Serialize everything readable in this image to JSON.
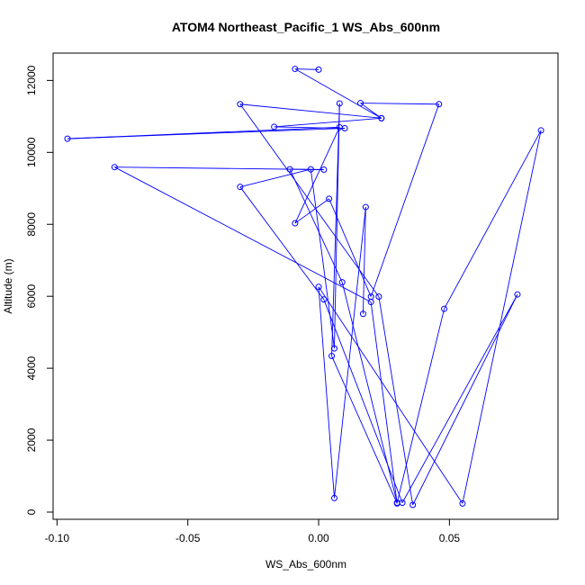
{
  "chart_data": {
    "type": "line",
    "title": "ATOM4 Northeast_Pacific_1 WS_Abs_600nm",
    "xlabel": "WS_Abs_600nm",
    "ylabel": "Altitude (m)",
    "xlim": [
      -0.1015,
      0.0915
    ],
    "ylim": [
      -200,
      12760
    ],
    "x_ticks": [
      {
        "value": -0.1,
        "label": "-0.10"
      },
      {
        "value": -0.05,
        "label": "-0.05"
      },
      {
        "value": 0.0,
        "label": "0.00"
      },
      {
        "value": 0.05,
        "label": "0.05"
      }
    ],
    "y_ticks": [
      {
        "value": 0,
        "label": "0"
      },
      {
        "value": 2000,
        "label": "2000"
      },
      {
        "value": 4000,
        "label": "4000"
      },
      {
        "value": 6000,
        "label": "6000"
      },
      {
        "value": 8000,
        "label": "8000"
      },
      {
        "value": 10000,
        "label": "10000"
      },
      {
        "value": 12000,
        "label": "12000"
      }
    ],
    "grid": false,
    "markers": "open-circle",
    "line_color": "#0000ff",
    "series": [
      {
        "points": [
          {
            "x": 0.0,
            "y": 12300
          },
          {
            "x": -0.009,
            "y": 12320
          },
          {
            "x": 0.024,
            "y": 10950
          },
          {
            "x": -0.017,
            "y": 10710
          },
          {
            "x": 0.01,
            "y": 10670
          },
          {
            "x": -0.096,
            "y": 10380
          },
          {
            "x": 0.008,
            "y": 10700
          },
          {
            "x": -0.009,
            "y": 8030
          },
          {
            "x": 0.004,
            "y": 8710
          },
          {
            "x": 0.02,
            "y": 5990
          },
          {
            "x": 0.046,
            "y": 11340
          },
          {
            "x": 0.016,
            "y": 11370
          },
          {
            "x": 0.024,
            "y": 10950
          },
          {
            "x": -0.03,
            "y": 11340
          },
          {
            "x": 0.023,
            "y": 5990
          },
          {
            "x": 0.036,
            "y": 200
          },
          {
            "x": 0.076,
            "y": 6050
          },
          {
            "x": 0.032,
            "y": 260
          },
          {
            "x": 0.002,
            "y": 5910
          },
          {
            "x": -0.03,
            "y": 9040
          },
          {
            "x": -0.003,
            "y": 9530
          },
          {
            "x": 0.006,
            "y": 4550
          },
          {
            "x": 0.008,
            "y": 11360
          },
          {
            "x": 0.005,
            "y": 4340
          },
          {
            "x": 0.03,
            "y": 240
          },
          {
            "x": 0.02,
            "y": 5840
          },
          {
            "x": -0.078,
            "y": 9590
          },
          {
            "x": 0.002,
            "y": 9520
          },
          {
            "x": -0.011,
            "y": 9530
          },
          {
            "x": 0.009,
            "y": 6390
          },
          {
            "x": 0.03,
            "y": 260
          },
          {
            "x": 0.048,
            "y": 5650
          },
          {
            "x": 0.085,
            "y": 10610
          },
          {
            "x": 0.055,
            "y": 240
          },
          {
            "x": 0.0,
            "y": 6260
          },
          {
            "x": 0.006,
            "y": 390
          },
          {
            "x": 0.018,
            "y": 8480
          },
          {
            "x": 0.017,
            "y": 5510
          }
        ]
      }
    ]
  }
}
